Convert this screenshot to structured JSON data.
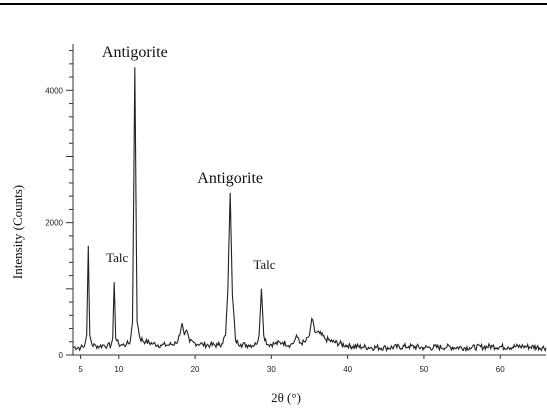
{
  "chart_data": {
    "type": "line",
    "title": "",
    "xlabel": "2θ (°)",
    "ylabel": "Intensity (Counts)",
    "xlim": [
      4,
      66
    ],
    "ylim": [
      0,
      4700
    ],
    "grid": false,
    "x_ticks": [
      5,
      10,
      20,
      30,
      40,
      50,
      60
    ],
    "y_ticks": [
      0,
      2000,
      4000
    ],
    "series": [
      {
        "values": [
          [
            4.0,
            120
          ],
          [
            5.0,
            110
          ],
          [
            5.5,
            130
          ],
          [
            5.8,
            300
          ],
          [
            6.0,
            1650
          ],
          [
            6.2,
            300
          ],
          [
            6.5,
            150
          ],
          [
            7.0,
            140
          ],
          [
            7.5,
            130
          ],
          [
            8.0,
            150
          ],
          [
            8.5,
            140
          ],
          [
            9.0,
            150
          ],
          [
            9.2,
            250
          ],
          [
            9.4,
            1100
          ],
          [
            9.6,
            250
          ],
          [
            10.0,
            160
          ],
          [
            10.5,
            150
          ],
          [
            11.0,
            160
          ],
          [
            11.5,
            200
          ],
          [
            11.8,
            500
          ],
          [
            12.1,
            4350
          ],
          [
            12.4,
            500
          ],
          [
            12.8,
            250
          ],
          [
            13.5,
            200
          ],
          [
            14.5,
            170
          ],
          [
            15.5,
            150
          ],
          [
            16.5,
            150
          ],
          [
            17.5,
            180
          ],
          [
            18.0,
            300
          ],
          [
            18.3,
            480
          ],
          [
            18.6,
            300
          ],
          [
            19.0,
            350
          ],
          [
            19.3,
            200
          ],
          [
            20.0,
            180
          ],
          [
            21.0,
            160
          ],
          [
            22.0,
            150
          ],
          [
            23.0,
            150
          ],
          [
            23.5,
            170
          ],
          [
            24.0,
            300
          ],
          [
            24.3,
            1000
          ],
          [
            24.6,
            2450
          ],
          [
            24.9,
            900
          ],
          [
            25.3,
            220
          ],
          [
            26.0,
            160
          ],
          [
            27.0,
            150
          ],
          [
            28.0,
            160
          ],
          [
            28.4,
            300
          ],
          [
            28.7,
            1000
          ],
          [
            29.0,
            300
          ],
          [
            29.5,
            160
          ],
          [
            30.5,
            170
          ],
          [
            31.5,
            190
          ],
          [
            32.5,
            150
          ],
          [
            33.0,
            200
          ],
          [
            33.3,
            300
          ],
          [
            33.7,
            180
          ],
          [
            34.5,
            200
          ],
          [
            35.0,
            300
          ],
          [
            35.3,
            550
          ],
          [
            35.7,
            350
          ],
          [
            36.3,
            330
          ],
          [
            37.0,
            250
          ],
          [
            38.0,
            200
          ],
          [
            40.0,
            140
          ],
          [
            42.0,
            120
          ],
          [
            45.0,
            110
          ],
          [
            48.0,
            130
          ],
          [
            50.0,
            110
          ],
          [
            53.0,
            120
          ],
          [
            56.0,
            110
          ],
          [
            59.0,
            130
          ],
          [
            61.0,
            120
          ],
          [
            63.0,
            130
          ],
          [
            66.0,
            110
          ]
        ]
      }
    ],
    "annotations": [
      {
        "text": "Antigorite",
        "x": 12.1,
        "y": 4350
      },
      {
        "text": "Antigorite",
        "x": 24.6,
        "y": 2450
      },
      {
        "text": "Talc",
        "x": 9.4,
        "y": 1100
      },
      {
        "text": "Talc",
        "x": 28.7,
        "y": 1000
      }
    ]
  }
}
